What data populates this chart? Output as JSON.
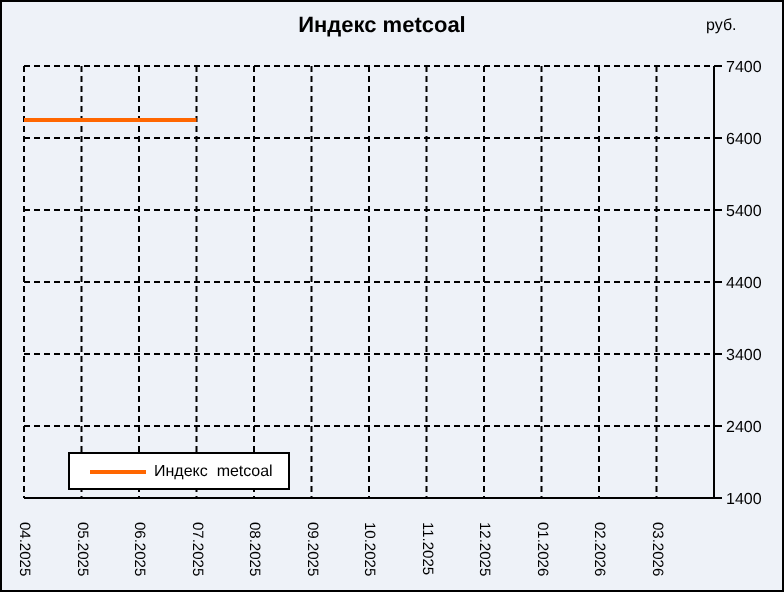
{
  "chart_data": {
    "type": "line",
    "title": "Индекс metcoal",
    "ylabel": "руб.",
    "categories": [
      "04.2025",
      "05.2025",
      "06.2025",
      "07.2025",
      "08.2025",
      "09.2025",
      "10.2025",
      "11.2025",
      "12.2025",
      "01.2026",
      "02.2026",
      "03.2026"
    ],
    "series": [
      {
        "name": "Индекс  metcoal",
        "color": "#ff6600",
        "values": [
          6650,
          6650,
          6650,
          6650,
          null,
          null,
          null,
          null,
          null,
          null,
          null,
          null
        ]
      }
    ],
    "ylim": [
      1400,
      7400
    ],
    "yticks": [
      1400,
      2400,
      3400,
      4400,
      5400,
      6400,
      7400
    ],
    "grid": true,
    "legend": "bottom left",
    "line_style": "solid",
    "marker": "none"
  }
}
